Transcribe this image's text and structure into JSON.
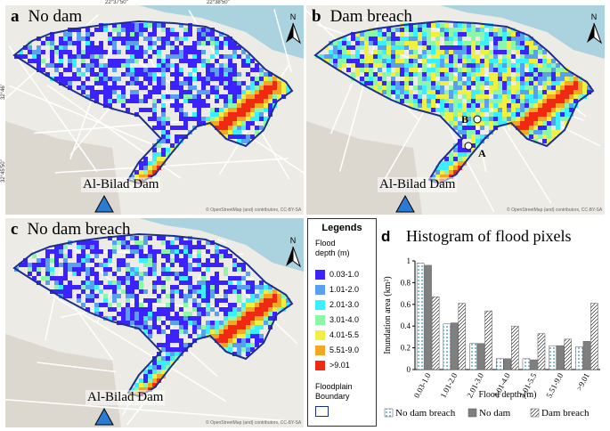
{
  "top_coords": [
    "22°37'50\"",
    "22°38'50\""
  ],
  "left_coords": [
    "32°46'",
    "32°45'50\""
  ],
  "panels": {
    "a": {
      "letter": "a",
      "title": "No dam",
      "dam_label": "Al-Bilad Dam"
    },
    "b": {
      "letter": "b",
      "title": "Dam breach",
      "dam_label": "Al-Bilad Dam",
      "point_a": "A",
      "point_b": "B"
    },
    "c": {
      "letter": "c",
      "title": "No dam breach",
      "dam_label": "Al-Bilad Dam"
    }
  },
  "north_label": "N",
  "map_credit": "© OpenStreetMap (and) contributors, CC-BY-SA",
  "legend": {
    "title": "Legends",
    "subtitle_line1": "Flood",
    "subtitle_line2": "depth (m)",
    "items": [
      {
        "label": "0.03-1.0",
        "color": "#3b22ff"
      },
      {
        "label": "1.01-2.0",
        "color": "#5aa0f0"
      },
      {
        "label": "2.01-3.0",
        "color": "#38f0ff"
      },
      {
        "label": "3.01-4.0",
        "color": "#8cf7a8"
      },
      {
        "label": "4.01-5.5",
        "color": "#f0f040"
      },
      {
        "label": "5.51-9.0",
        "color": "#f5a623"
      },
      {
        "label": ">9.01",
        "color": "#f02a12"
      }
    ],
    "boundary_line1": "Floodplain",
    "boundary_line2": "Boundary",
    "boundary_color": "#1a2f8f"
  },
  "chart_data": {
    "type": "bar",
    "panel_letter": "d",
    "title": "Histogram of flood pixels",
    "xlabel": "Flood depth (m)",
    "ylabel": "Inundation area (km²)",
    "categories": [
      "0.03-1.0",
      "1.01-2.0",
      "2.01-3.0",
      "3.01-4.0",
      "4.01-5.5",
      "5.51-9.0",
      ">9.01"
    ],
    "ylim": [
      0,
      1
    ],
    "yticks": [
      "0",
      "0.2",
      "0.4",
      "0.6",
      "0.8",
      "1"
    ],
    "series": [
      {
        "name": "No dam breach",
        "values": [
          0.98,
          0.42,
          0.24,
          0.1,
          0.1,
          0.22,
          0.21
        ],
        "color": "#5fa8c8",
        "pattern": "dots"
      },
      {
        "name": "No dam",
        "values": [
          0.96,
          0.43,
          0.24,
          0.1,
          0.09,
          0.22,
          0.26
        ],
        "color": "#7f7f7f",
        "pattern": "solid"
      },
      {
        "name": "Dam breach",
        "values": [
          0.67,
          0.61,
          0.54,
          0.4,
          0.33,
          0.28,
          0.61
        ],
        "color": "#ffffff",
        "pattern": "hatch"
      }
    ],
    "grid": false,
    "legend_position": "bottom"
  }
}
